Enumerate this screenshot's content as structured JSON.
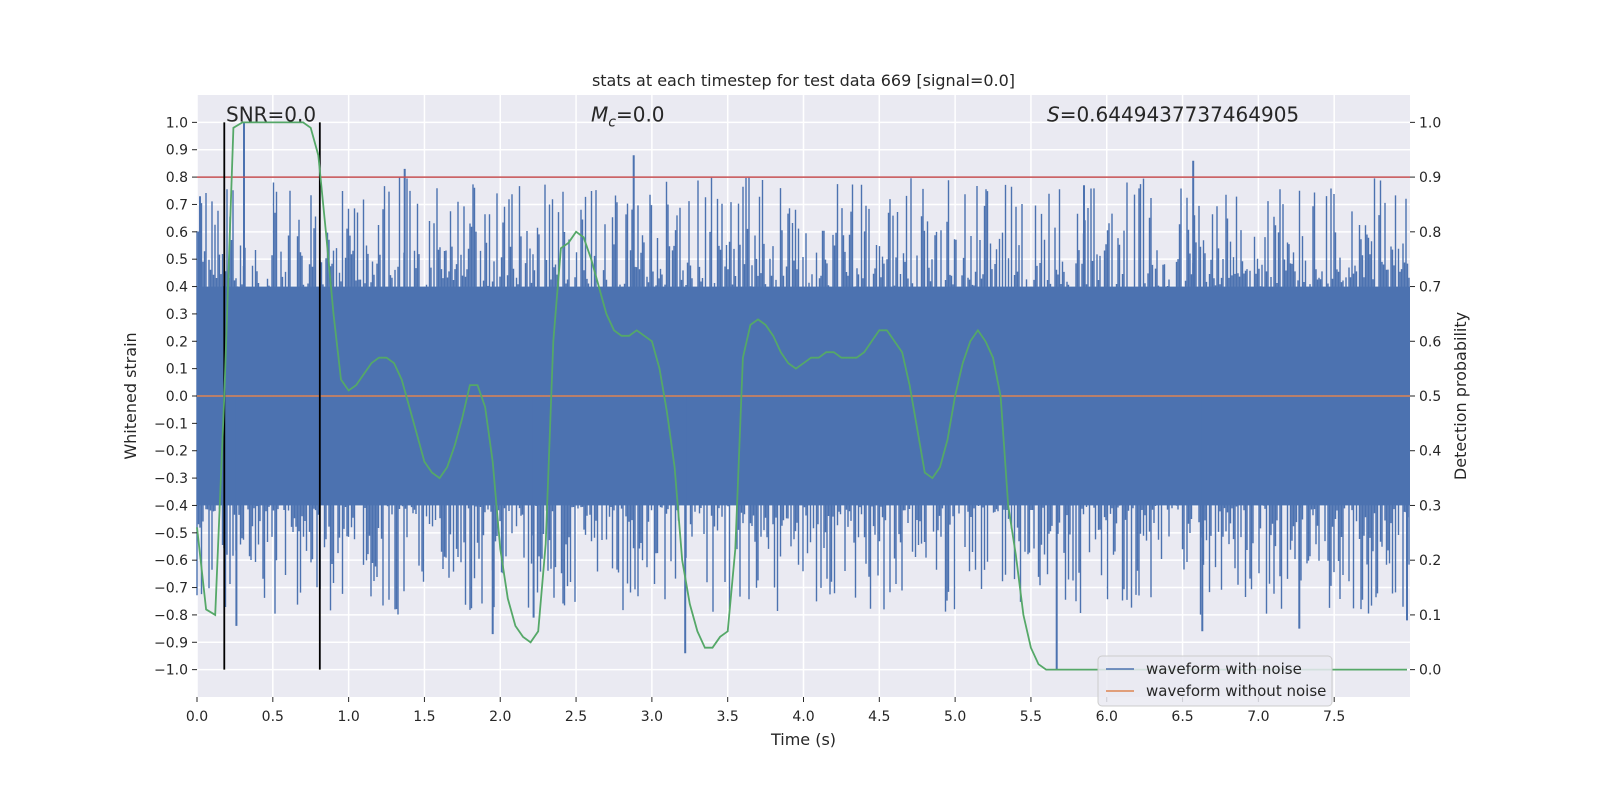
{
  "chart_data": {
    "type": "line",
    "title": "stats at each timestep for test data 669 [signal=0.0]",
    "xlabel": "Time (s)",
    "ylabel": "Whitened strain",
    "y2label": "Detection probability",
    "xlim": [
      0.0,
      8.0
    ],
    "ylim": [
      -1.1,
      1.1
    ],
    "y2lim": [
      -0.05,
      1.05
    ],
    "xticks": [
      "0.0",
      "0.5",
      "1.0",
      "1.5",
      "2.0",
      "2.5",
      "3.0",
      "3.5",
      "4.0",
      "4.5",
      "5.0",
      "5.5",
      "6.0",
      "6.5",
      "7.0",
      "7.5"
    ],
    "yticks": [
      "1.0",
      "0.9",
      "0.8",
      "0.7",
      "0.6",
      "0.5",
      "0.4",
      "0.3",
      "0.2",
      "0.1",
      "0.0",
      "−0.1",
      "−0.2",
      "−0.3",
      "−0.4",
      "−0.5",
      "−0.6",
      "−0.7",
      "−0.8",
      "−0.9",
      "−1.0"
    ],
    "y2ticks": [
      "1.0",
      "0.9",
      "0.8",
      "0.7",
      "0.6",
      "0.5",
      "0.4",
      "0.3",
      "0.2",
      "0.1",
      "0.0"
    ],
    "annotations": {
      "snr": "SNR=0.0",
      "mc_symbol": "M",
      "mc_sub": "c",
      "mc_value": "=0.0",
      "s_symbol": "S",
      "s_value": "=0.6449437737464905"
    },
    "threshold": {
      "axis": "y2",
      "value": 0.9,
      "color": "#c44e52"
    },
    "vlines": {
      "x": [
        0.18,
        0.81
      ],
      "ymin": -1.0,
      "ymax": 1.0,
      "color": "#000000"
    },
    "legend": {
      "location": "lower right",
      "entries": [
        {
          "label": "waveform with noise",
          "color": "#4c72b0"
        },
        {
          "label": "waveform without noise",
          "color": "#dd8452"
        }
      ]
    },
    "series": [
      {
        "name": "waveform with noise",
        "axis": "y",
        "color": "#4c72b0",
        "description": "whitened noise band",
        "band": [
          -0.4,
          0.4
        ],
        "peaks": [
          {
            "x": 0.31,
            "y": 1.0
          },
          {
            "x": 0.02,
            "y": 0.73
          },
          {
            "x": 1.37,
            "y": 0.83
          },
          {
            "x": 2.88,
            "y": 0.88
          },
          {
            "x": 5.85,
            "y": 0.77
          },
          {
            "x": 6.57,
            "y": 0.86
          },
          {
            "x": 0.26,
            "y": -0.84
          },
          {
            "x": 1.95,
            "y": -0.87
          },
          {
            "x": 3.22,
            "y": -0.94
          },
          {
            "x": 5.67,
            "y": -1.0
          },
          {
            "x": 6.63,
            "y": -0.86
          },
          {
            "x": 7.27,
            "y": -0.85
          },
          {
            "x": 2.22,
            "y": -0.81
          },
          {
            "x": 7.98,
            "y": -0.82
          }
        ]
      },
      {
        "name": "waveform without noise",
        "axis": "y",
        "color": "#dd8452",
        "x": [
          0.0,
          8.0
        ],
        "y": [
          0.0,
          0.0
        ]
      },
      {
        "name": "detection probability",
        "axis": "y2",
        "color": "#55a868",
        "x": [
          0.0,
          0.06,
          0.12,
          0.18,
          0.24,
          0.3,
          0.35,
          0.4,
          0.5,
          0.6,
          0.7,
          0.75,
          0.8,
          0.85,
          0.9,
          0.95,
          1.0,
          1.05,
          1.1,
          1.15,
          1.2,
          1.25,
          1.3,
          1.35,
          1.4,
          1.45,
          1.5,
          1.55,
          1.6,
          1.65,
          1.7,
          1.75,
          1.8,
          1.85,
          1.9,
          1.95,
          2.0,
          2.05,
          2.1,
          2.15,
          2.2,
          2.25,
          2.3,
          2.35,
          2.4,
          2.45,
          2.5,
          2.55,
          2.6,
          2.65,
          2.7,
          2.75,
          2.8,
          2.85,
          2.9,
          2.95,
          3.0,
          3.05,
          3.1,
          3.15,
          3.2,
          3.25,
          3.3,
          3.35,
          3.4,
          3.45,
          3.5,
          3.55,
          3.6,
          3.65,
          3.7,
          3.75,
          3.8,
          3.85,
          3.9,
          3.95,
          4.0,
          4.05,
          4.1,
          4.15,
          4.2,
          4.25,
          4.3,
          4.35,
          4.4,
          4.45,
          4.5,
          4.55,
          4.6,
          4.65,
          4.7,
          4.75,
          4.8,
          4.85,
          4.9,
          4.95,
          5.0,
          5.05,
          5.1,
          5.15,
          5.2,
          5.25,
          5.3,
          5.35,
          5.4,
          5.45,
          5.5,
          5.55,
          5.6,
          5.7,
          5.8,
          6.0,
          6.5,
          7.0,
          7.5,
          7.98
        ],
        "y": [
          0.26,
          0.11,
          0.1,
          0.5,
          0.99,
          1.0,
          1.0,
          1.0,
          1.0,
          1.0,
          1.0,
          0.99,
          0.94,
          0.8,
          0.65,
          0.53,
          0.51,
          0.52,
          0.54,
          0.56,
          0.57,
          0.57,
          0.56,
          0.53,
          0.48,
          0.43,
          0.38,
          0.36,
          0.35,
          0.37,
          0.41,
          0.46,
          0.52,
          0.52,
          0.48,
          0.38,
          0.22,
          0.13,
          0.08,
          0.06,
          0.05,
          0.07,
          0.23,
          0.6,
          0.77,
          0.78,
          0.8,
          0.79,
          0.75,
          0.7,
          0.65,
          0.62,
          0.61,
          0.61,
          0.62,
          0.61,
          0.6,
          0.55,
          0.47,
          0.37,
          0.2,
          0.12,
          0.07,
          0.04,
          0.04,
          0.06,
          0.07,
          0.22,
          0.57,
          0.63,
          0.64,
          0.63,
          0.61,
          0.58,
          0.56,
          0.55,
          0.56,
          0.57,
          0.57,
          0.58,
          0.58,
          0.57,
          0.57,
          0.57,
          0.58,
          0.6,
          0.62,
          0.62,
          0.6,
          0.58,
          0.52,
          0.44,
          0.36,
          0.35,
          0.37,
          0.42,
          0.5,
          0.56,
          0.6,
          0.62,
          0.6,
          0.57,
          0.5,
          0.3,
          0.21,
          0.1,
          0.04,
          0.01,
          0.0,
          0.0,
          0.0,
          0.0,
          0.0,
          0.0,
          0.0,
          0.0
        ]
      }
    ]
  }
}
